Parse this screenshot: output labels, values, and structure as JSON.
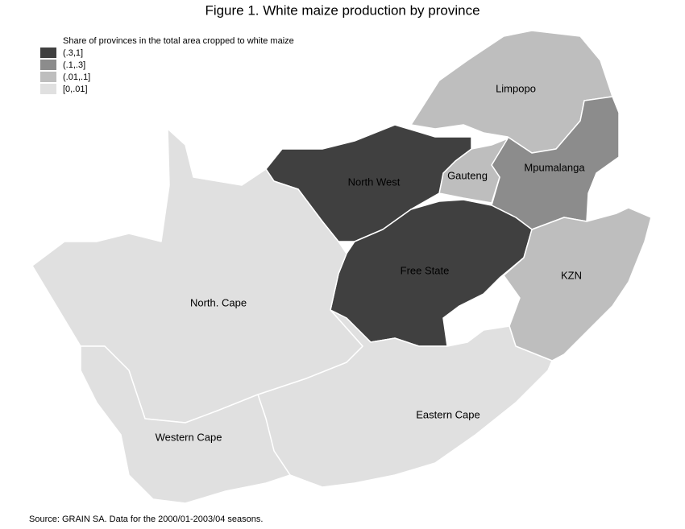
{
  "title": "Figure 1. White maize production by province",
  "legend": {
    "title": "Share of provinces in the total area cropped to white maize",
    "items": [
      {
        "label": "(.3,1]",
        "color": "#404040"
      },
      {
        "label": "(.1,.3]",
        "color": "#8c8c8c"
      },
      {
        "label": "(.01,.1]",
        "color": "#bebebe"
      },
      {
        "label": "[0,.01]",
        "color": "#e0e0e0"
      }
    ]
  },
  "provinces": [
    {
      "name": "Limpopo",
      "color": "#bebebe"
    },
    {
      "name": "Mpumalanga",
      "color": "#8c8c8c"
    },
    {
      "name": "Gauteng",
      "color": "#bebebe"
    },
    {
      "name": "North West",
      "color": "#404040"
    },
    {
      "name": "Free State",
      "color": "#404040"
    },
    {
      "name": "KZN",
      "color": "#bebebe"
    },
    {
      "name": "Eastern Cape",
      "color": "#e0e0e0"
    },
    {
      "name": "North. Cape",
      "color": "#e0e0e0"
    },
    {
      "name": "Western Cape",
      "color": "#e0e0e0"
    }
  ],
  "source": "Source: GRAIN SA. Data for the 2000/01-2003/04 seasons."
}
